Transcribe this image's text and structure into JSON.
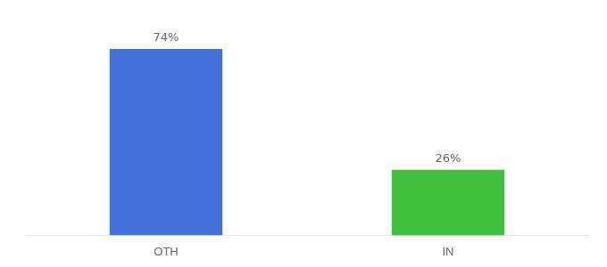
{
  "chart_data": {
    "type": "bar",
    "categories": [
      "OTH",
      "IN"
    ],
    "values": [
      74,
      26
    ],
    "value_labels": [
      "74%",
      "26%"
    ],
    "colors": [
      "#4472db",
      "#3dbf3d"
    ],
    "ylim": [
      0,
      85
    ],
    "data_labels": true,
    "tick_labels": "x",
    "grid": false
  }
}
